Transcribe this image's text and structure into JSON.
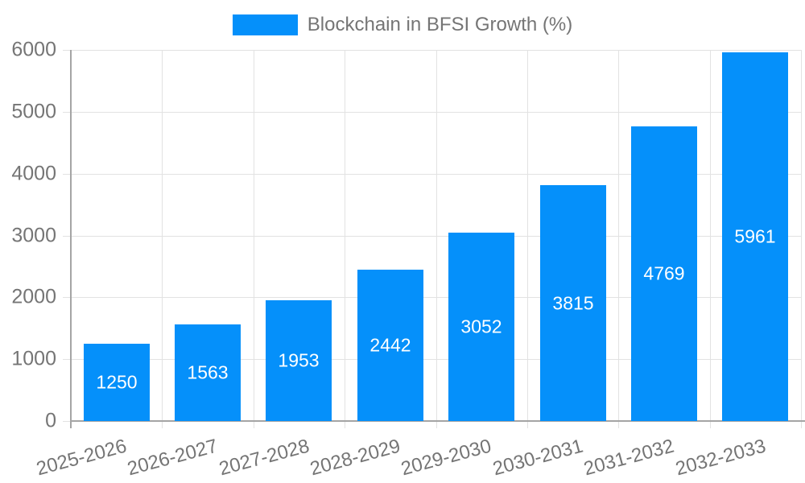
{
  "chart_data": {
    "type": "bar",
    "title": "Blockchain in BFSI Growth (%)",
    "legend": {
      "label": "Blockchain in BFSI Growth (%)",
      "position": "top-center"
    },
    "categories": [
      "2025-2026",
      "2026-2027",
      "2027-2028",
      "2028-2029",
      "2029-2030",
      "2030-2031",
      "2031-2032",
      "2032-2033"
    ],
    "values": [
      1250,
      1563,
      1953,
      2442,
      3052,
      3815,
      4769,
      5961
    ],
    "value_labels": [
      "1250",
      "1563",
      "1953",
      "2442",
      "3052",
      "3815",
      "4769",
      "5961"
    ],
    "value_label_position": "inside-center",
    "xlabel": "",
    "ylabel": "",
    "ylim": [
      0,
      6000
    ],
    "yticks": [
      0,
      1000,
      2000,
      3000,
      4000,
      5000,
      6000
    ],
    "ytick_labels": [
      "0",
      "1000",
      "2000",
      "3000",
      "4000",
      "5000",
      "6000"
    ],
    "xtick_rotation_deg": -15,
    "grid": true,
    "colors": {
      "bar": "#0590FA",
      "bar_label": "#FFFFFF",
      "axis_text": "#757575",
      "grid_line": "#E2E2E2",
      "axis_line": "#A5A5A5",
      "background": "#FFFFFF"
    }
  }
}
